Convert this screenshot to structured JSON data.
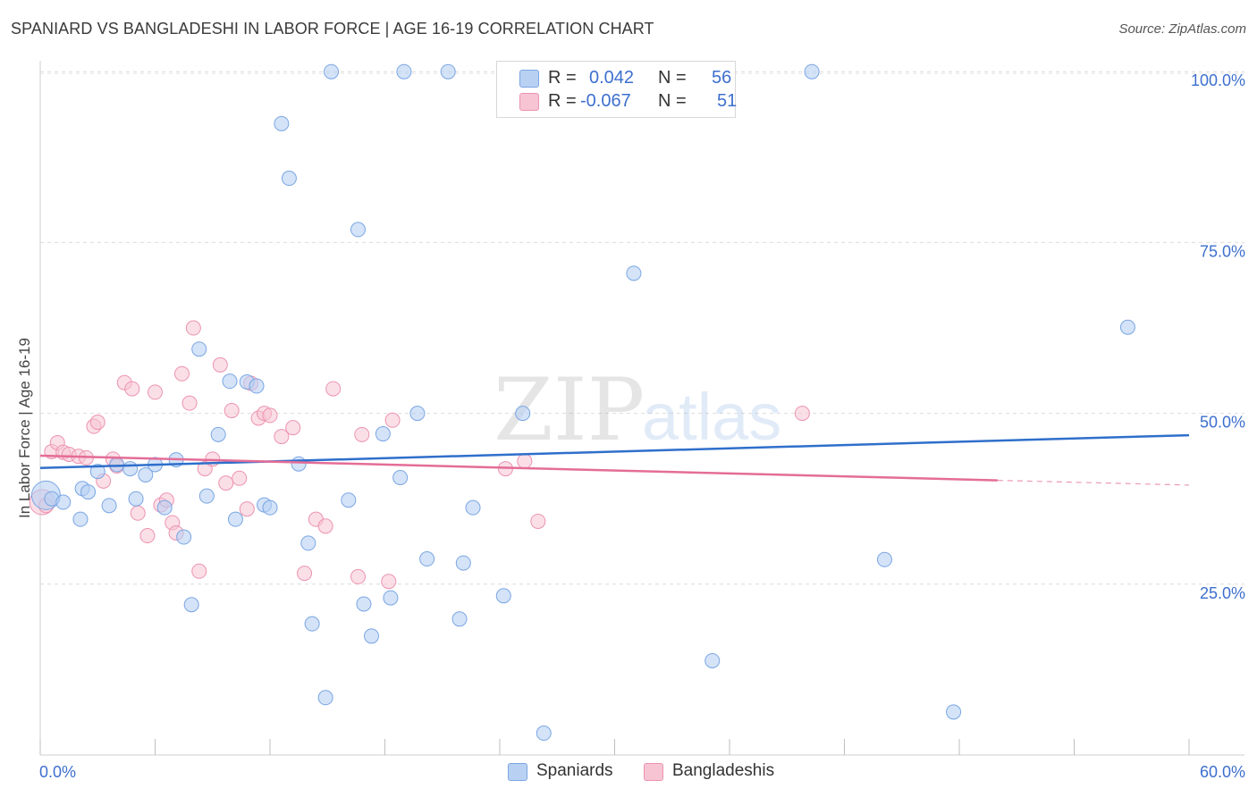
{
  "title": "SPANIARD VS BANGLADESHI IN LABOR FORCE | AGE 16-19 CORRELATION CHART",
  "source": "Source: ZipAtlas.com",
  "watermark": {
    "zip": "ZIP",
    "atlas": "atlas"
  },
  "legend": {
    "r_label": "R =",
    "n_label": "N =",
    "spaniards": {
      "r": "0.042",
      "n": "56"
    },
    "bangladeshis": {
      "r": "-0.067",
      "n": "51"
    }
  },
  "colors": {
    "blue_fill": "#b8d1f3",
    "blue_stroke": "#7aa6e3",
    "blue_line": "#2f6fcb",
    "pink_fill": "#f7c4d4",
    "pink_stroke": "#ec93b1",
    "pink_line": "#e46d97",
    "axis_text": "#3d6fce"
  },
  "chart_data": {
    "type": "scatter",
    "title": "SPANIARD VS BANGLADESHI IN LABOR FORCE | AGE 16-19 CORRELATION CHART",
    "xlabel": "",
    "ylabel": "In Labor Force | Age 16-19",
    "xlim": [
      0,
      60
    ],
    "ylim": [
      0,
      105
    ],
    "x_tick_labels": [
      "0.0%",
      "60.0%"
    ],
    "y_ticks": [
      25,
      50,
      75,
      100
    ],
    "y_tick_labels": [
      "25.0%",
      "50.0%",
      "75.0%",
      "100.0%"
    ],
    "grid": "horizontal dashed",
    "legend_position": "top-center",
    "series": [
      {
        "name": "Spaniards",
        "color": "#b8d1f3",
        "trend": {
          "x": [
            0,
            60
          ],
          "y": [
            42.0,
            46.8
          ]
        },
        "points": [
          [
            0.3,
            38
          ],
          [
            0.6,
            37.5
          ],
          [
            1.2,
            37
          ],
          [
            2.2,
            39
          ],
          [
            2.1,
            34.5
          ],
          [
            2.5,
            38.5
          ],
          [
            3.0,
            41.5
          ],
          [
            3.6,
            36.5
          ],
          [
            4.0,
            42.5
          ],
          [
            4.7,
            41.9
          ],
          [
            5.0,
            37.5
          ],
          [
            5.5,
            41.0
          ],
          [
            6.0,
            42.5
          ],
          [
            6.5,
            36.2
          ],
          [
            7.1,
            43.2
          ],
          [
            7.5,
            31.9
          ],
          [
            7.9,
            22.0
          ],
          [
            8.3,
            59.4
          ],
          [
            8.7,
            37.9
          ],
          [
            9.3,
            46.9
          ],
          [
            9.9,
            54.7
          ],
          [
            10.2,
            34.5
          ],
          [
            10.8,
            54.6
          ],
          [
            11.3,
            54.0
          ],
          [
            11.7,
            36.6
          ],
          [
            12.0,
            36.2
          ],
          [
            12.6,
            92.4
          ],
          [
            13.0,
            84.4
          ],
          [
            13.5,
            42.6
          ],
          [
            14.0,
            31.0
          ],
          [
            14.2,
            19.2
          ],
          [
            14.9,
            8.4
          ],
          [
            15.2,
            100
          ],
          [
            16.1,
            37.3
          ],
          [
            16.6,
            76.9
          ],
          [
            16.9,
            22.1
          ],
          [
            17.3,
            17.4
          ],
          [
            17.9,
            47.0
          ],
          [
            18.3,
            23.0
          ],
          [
            18.8,
            40.6
          ],
          [
            19.0,
            100
          ],
          [
            19.7,
            50.0
          ],
          [
            20.2,
            28.7
          ],
          [
            21.3,
            100
          ],
          [
            21.9,
            19.9
          ],
          [
            22.1,
            28.1
          ],
          [
            22.6,
            36.2
          ],
          [
            24.2,
            23.3
          ],
          [
            25.2,
            50.0
          ],
          [
            26.3,
            3.2
          ],
          [
            31.0,
            70.5
          ],
          [
            35.1,
            13.8
          ],
          [
            40.3,
            100
          ],
          [
            44.1,
            28.6
          ],
          [
            47.7,
            6.3
          ],
          [
            56.8,
            62.6
          ]
        ]
      },
      {
        "name": "Bangladeshis",
        "color": "#f7c4d4",
        "trend": {
          "x": [
            0,
            50
          ],
          "y": [
            43.8,
            40.2
          ],
          "dashed_to": {
            "x": 60,
            "y": 39.5
          }
        },
        "points": [
          [
            0.1,
            37
          ],
          [
            0.6,
            44.4
          ],
          [
            0.9,
            45.7
          ],
          [
            1.2,
            44.3
          ],
          [
            1.5,
            44.0
          ],
          [
            2.0,
            43.7
          ],
          [
            2.4,
            43.5
          ],
          [
            2.8,
            48.1
          ],
          [
            3.0,
            48.7
          ],
          [
            3.3,
            40.1
          ],
          [
            3.8,
            43.3
          ],
          [
            4.0,
            42.3
          ],
          [
            4.4,
            54.5
          ],
          [
            4.8,
            53.6
          ],
          [
            5.1,
            35.4
          ],
          [
            5.6,
            32.1
          ],
          [
            6.0,
            53.1
          ],
          [
            6.3,
            36.6
          ],
          [
            6.6,
            37.3
          ],
          [
            6.9,
            34.0
          ],
          [
            7.1,
            32.5
          ],
          [
            7.4,
            55.8
          ],
          [
            7.8,
            51.5
          ],
          [
            8.0,
            62.5
          ],
          [
            8.3,
            26.9
          ],
          [
            8.6,
            41.9
          ],
          [
            9.0,
            43.3
          ],
          [
            9.4,
            57.1
          ],
          [
            9.7,
            39.8
          ],
          [
            10.0,
            50.4
          ],
          [
            10.4,
            40.5
          ],
          [
            10.8,
            36.0
          ],
          [
            11.0,
            54.4
          ],
          [
            11.4,
            49.3
          ],
          [
            11.7,
            50.0
          ],
          [
            12.0,
            49.7
          ],
          [
            12.6,
            46.6
          ],
          [
            13.2,
            47.9
          ],
          [
            13.8,
            26.6
          ],
          [
            14.4,
            34.5
          ],
          [
            14.9,
            33.5
          ],
          [
            15.3,
            53.6
          ],
          [
            16.6,
            26.1
          ],
          [
            16.8,
            46.9
          ],
          [
            18.2,
            25.4
          ],
          [
            18.4,
            49.0
          ],
          [
            24.3,
            41.9
          ],
          [
            25.3,
            43.0
          ],
          [
            26.0,
            34.2
          ],
          [
            39.8,
            50.0
          ],
          [
            0.3,
            36.5
          ]
        ]
      }
    ]
  },
  "bottom_legend": {
    "spaniards": "Spaniards",
    "bangladeshis": "Bangladeshis"
  }
}
